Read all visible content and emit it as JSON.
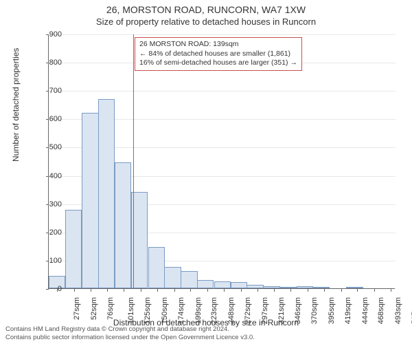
{
  "title_main": "26, MORSTON ROAD, RUNCORN, WA7 1XW",
  "title_sub": "Size of property relative to detached houses in Runcorn",
  "y_axis_label": "Number of detached properties",
  "x_axis_label": "Distribution of detached houses by size in Runcorn",
  "chart": {
    "type": "histogram",
    "ylim": [
      0,
      900
    ],
    "ytick_step": 100,
    "xlim_sqm": [
      15,
      524
    ],
    "xtick_start_sqm": 27,
    "xtick_step_sqm": 24.5,
    "xtick_count": 21,
    "bar_fill": "#dbe5f1",
    "bar_border": "#7a9bc4",
    "grid_color": "#e8e8e8",
    "background_color": "#ffffff",
    "bars": [
      {
        "sqm": 27,
        "count": 45
      },
      {
        "sqm": 51,
        "count": 278
      },
      {
        "sqm": 76,
        "count": 620
      },
      {
        "sqm": 100,
        "count": 670
      },
      {
        "sqm": 124,
        "count": 445
      },
      {
        "sqm": 148,
        "count": 340
      },
      {
        "sqm": 173,
        "count": 145
      },
      {
        "sqm": 197,
        "count": 75
      },
      {
        "sqm": 221,
        "count": 62
      },
      {
        "sqm": 245,
        "count": 30
      },
      {
        "sqm": 270,
        "count": 25
      },
      {
        "sqm": 294,
        "count": 22
      },
      {
        "sqm": 318,
        "count": 12
      },
      {
        "sqm": 342,
        "count": 8
      },
      {
        "sqm": 367,
        "count": 5
      },
      {
        "sqm": 391,
        "count": 8
      },
      {
        "sqm": 415,
        "count": 2
      },
      {
        "sqm": 439,
        "count": 0
      },
      {
        "sqm": 464,
        "count": 2
      },
      {
        "sqm": 488,
        "count": 0
      },
      {
        "sqm": 512,
        "count": 0
      }
    ],
    "marker_sqm": 139,
    "marker_color": "#c94f4f"
  },
  "annotation": {
    "line1": "26 MORSTON ROAD: 139sqm",
    "line2": "← 84% of detached houses are smaller (1,861)",
    "line3": "16% of semi-detached houses are larger (351) →",
    "border_color": "#c94f4f"
  },
  "footer_line1": "Contains HM Land Registry data © Crown copyright and database right 2024.",
  "footer_line2": "Contains public sector information licensed under the Open Government Licence v3.0."
}
